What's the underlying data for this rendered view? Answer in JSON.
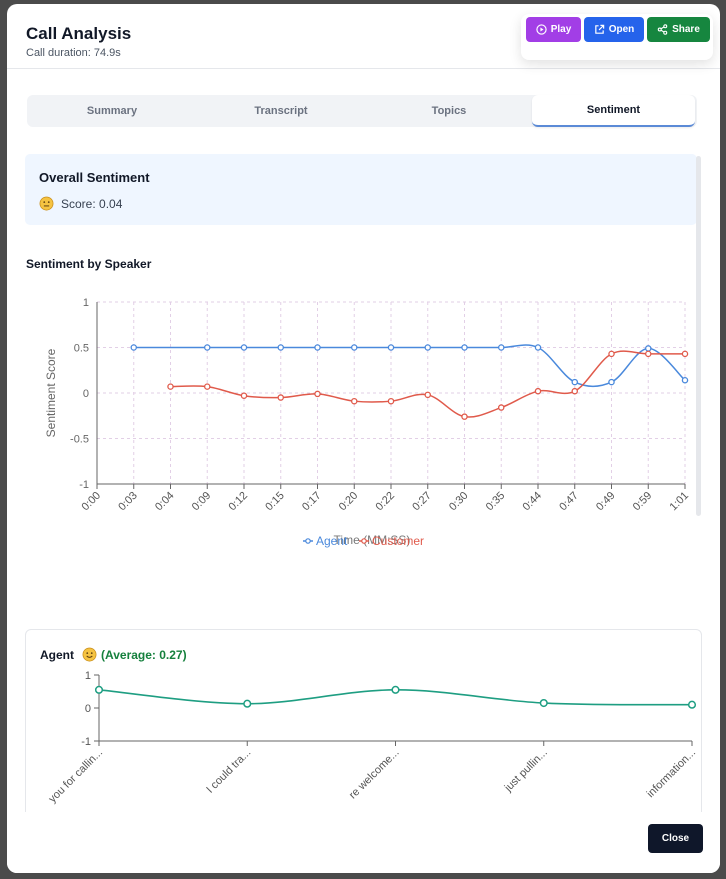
{
  "header": {
    "title": "Call Analysis",
    "subtitle": "Call duration: 74.9s"
  },
  "actions": {
    "play_label": "Play",
    "open_label": "Open",
    "share_label": "Share"
  },
  "tabs": [
    {
      "label": "Summary"
    },
    {
      "label": "Transcript"
    },
    {
      "label": "Topics"
    },
    {
      "label": "Sentiment"
    }
  ],
  "overall": {
    "title": "Overall Sentiment",
    "score_text": "Score: 0.04"
  },
  "speaker_section": {
    "title": "Sentiment by Speaker"
  },
  "agent_section": {
    "label": "Agent",
    "average_text": "(Average: 0.27)"
  },
  "footer": {
    "close_label": "Close"
  },
  "colors": {
    "agent": "#4a89dc",
    "customer": "#e05a4b",
    "agent_trend": "#1e9e82",
    "grid": "#e2cfe6"
  },
  "chart_data": [
    {
      "type": "line",
      "title": "Sentiment by Speaker",
      "xlabel": "Time (MM:SS)",
      "ylabel": "Sentiment Score",
      "ylim": [
        -1,
        1
      ],
      "yticks": [
        1,
        0.5,
        0,
        -0.5,
        -1
      ],
      "ytick_labels": [
        "1",
        "0.5",
        "0",
        "-0.5",
        "-1"
      ],
      "categories": [
        "0:00",
        "0:03",
        "0:04",
        "0:09",
        "0:12",
        "0:15",
        "0:17",
        "0:20",
        "0:22",
        "0:27",
        "0:30",
        "0:35",
        "0:44",
        "0:47",
        "0:49",
        "0:59",
        "1:01"
      ],
      "legend": "bottom-center",
      "series": [
        {
          "name": "Agent",
          "values": [
            null,
            0.5,
            null,
            0.5,
            0.5,
            0.5,
            0.5,
            0.5,
            0.5,
            0.5,
            0.5,
            0.5,
            0.5,
            0.12,
            0.12,
            0.49,
            0.14
          ]
        },
        {
          "name": "Customer",
          "values": [
            null,
            null,
            0.07,
            0.07,
            -0.03,
            -0.05,
            -0.01,
            -0.09,
            -0.09,
            -0.02,
            -0.26,
            -0.16,
            0.02,
            0.02,
            0.43,
            0.43,
            0.43
          ]
        }
      ]
    },
    {
      "type": "line",
      "title": "Agent",
      "ylim": [
        -1,
        1
      ],
      "yticks": [
        1,
        0,
        -1
      ],
      "ytick_labels": [
        "1",
        "0",
        "-1"
      ],
      "categories": [
        "you for callin...",
        "I could tra...",
        "re welcome...",
        "just pullin...",
        "information..."
      ],
      "series": [
        {
          "name": "Agent",
          "values": [
            0.55,
            0.13,
            0.55,
            0.15,
            0.1
          ]
        }
      ]
    }
  ]
}
